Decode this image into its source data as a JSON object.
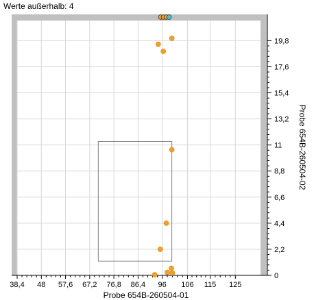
{
  "header": {
    "outliers_label": "Werte außerhalb: 4"
  },
  "chart_data": {
    "type": "scatter",
    "xlabel": "Probe 654B-260504-01",
    "ylabel": "Probe 654B-260504-02",
    "xlim": [
      38.4,
      135
    ],
    "ylim": [
      0,
      21.5
    ],
    "x_ticks": [
      38.4,
      48,
      57.6,
      67.2,
      76.8,
      86.4,
      96,
      106,
      115,
      125
    ],
    "y_ticks": [
      0,
      2.2,
      4.4,
      6.6,
      8.8,
      11,
      13.2,
      15.4,
      17.6,
      19.8
    ],
    "x_tick_labels": [
      "38,4",
      "48",
      "57,6",
      "67,2",
      "76,8",
      "86,4",
      "96",
      "106",
      "115",
      "125"
    ],
    "y_tick_labels": [
      "0",
      "2,2",
      "4,4",
      "6,6",
      "8,8",
      "11",
      "13,2",
      "15,4",
      "17,6",
      "19,8"
    ],
    "grid": true,
    "colors": {
      "point": "#f0a030",
      "point_stroke": "#d98a10",
      "outlier_highlight": "#40c8d8",
      "frame": "#c0c0c0",
      "box": "#808080"
    },
    "points": [
      {
        "x": 99.8,
        "y": 20.0
      },
      {
        "x": 94.4,
        "y": 19.5
      },
      {
        "x": 96.4,
        "y": 18.9
      },
      {
        "x": 99.8,
        "y": 10.6
      },
      {
        "x": 97.6,
        "y": 4.4
      },
      {
        "x": 95.2,
        "y": 2.2
      },
      {
        "x": 99.6,
        "y": 0.6
      },
      {
        "x": 98.0,
        "y": 0.25
      },
      {
        "x": 100.0,
        "y": 0.2
      },
      {
        "x": 93.0,
        "y": 0.05
      }
    ],
    "outlier_markers": [
      {
        "x": 95.4,
        "highlight": false
      },
      {
        "x": 96.5,
        "highlight": false
      },
      {
        "x": 97.6,
        "highlight": false
      },
      {
        "x": 98.7,
        "highlight": true
      }
    ],
    "box": {
      "x_range": [
        70.6,
        99.8
      ],
      "y_range": [
        1.2,
        11.3
      ]
    }
  }
}
